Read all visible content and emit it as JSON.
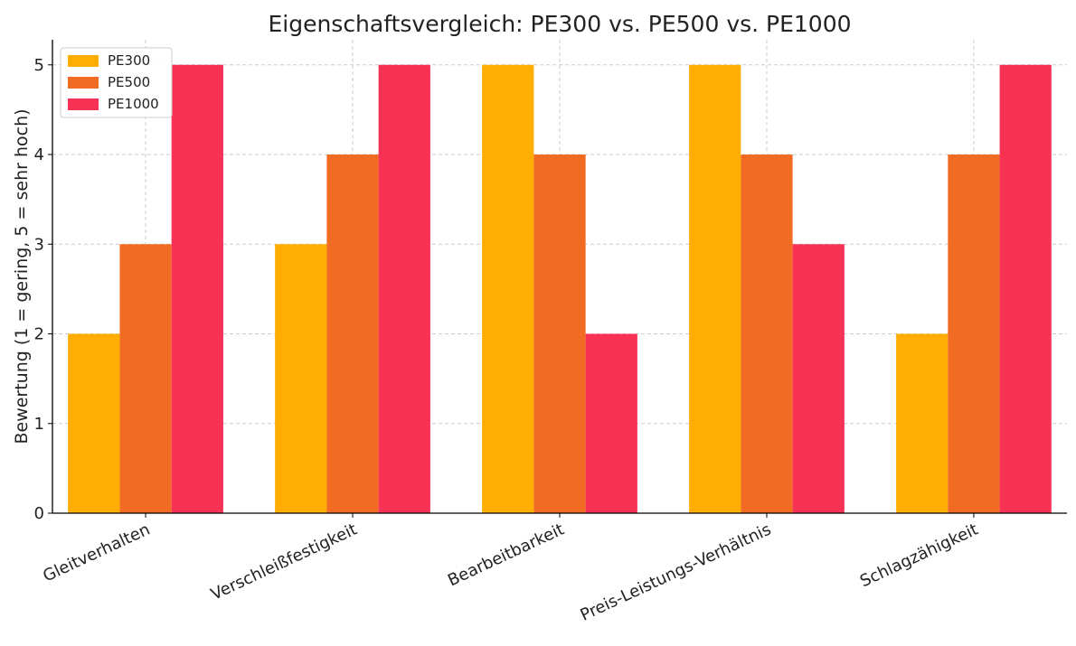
{
  "chart_data": {
    "type": "bar",
    "title": "Eigenschaftsvergleich: PE300 vs. PE500 vs. PE1000",
    "xlabel": "",
    "ylabel": "Bewertung (1 = gering, 5 = sehr hoch)",
    "categories": [
      "Gleitverhalten",
      "Verschleißfestigkeit",
      "Bearbeitbarkeit",
      "Preis-Leistungs-Verhältnis",
      "Schlagzähigkeit"
    ],
    "series": [
      {
        "name": "PE300",
        "color": "#ffad00",
        "values": [
          2,
          3,
          5,
          5,
          2
        ]
      },
      {
        "name": "PE500",
        "color": "#f26b22",
        "values": [
          3,
          4,
          4,
          4,
          4
        ]
      },
      {
        "name": "PE1000",
        "color": "#f73255",
        "values": [
          5,
          5,
          2,
          3,
          5
        ]
      }
    ],
    "ylim": [
      0,
      5.28
    ],
    "yticks": [
      "0",
      "1",
      "2",
      "3",
      "4",
      "5"
    ],
    "grid": true,
    "legend_position": "top-left"
  }
}
